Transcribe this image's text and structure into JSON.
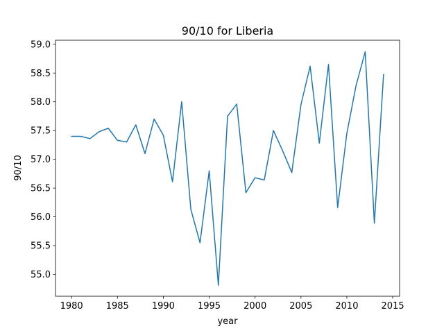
{
  "chart_data": {
    "type": "line",
    "title": "90/10 for Liberia",
    "xlabel": "year",
    "ylabel": "90/10",
    "xlim": [
      1978.25,
      2015.75
    ],
    "ylim": [
      54.62,
      59.07
    ],
    "x_ticks": [
      1980,
      1985,
      1990,
      1995,
      2000,
      2005,
      2010,
      2015
    ],
    "y_ticks": [
      55.0,
      55.5,
      56.0,
      56.5,
      57.0,
      57.5,
      58.0,
      58.5,
      59.0
    ],
    "grid": false,
    "series": [
      {
        "color": "#1f77b4",
        "x": [
          1980,
          1981,
          1982,
          1983,
          1984,
          1985,
          1986,
          1987,
          1988,
          1989,
          1990,
          1991,
          1992,
          1993,
          1994,
          1995,
          1996,
          1997,
          1998,
          1999,
          2000,
          2001,
          2002,
          2003,
          2004,
          2005,
          2006,
          2007,
          2008,
          2009,
          2010,
          2011,
          2012,
          2013,
          2014
        ],
        "y": [
          57.4,
          57.4,
          57.36,
          57.48,
          57.54,
          57.33,
          57.3,
          57.6,
          57.1,
          57.7,
          57.42,
          56.61,
          58.0,
          56.13,
          55.55,
          56.8,
          54.81,
          57.75,
          57.96,
          56.42,
          56.68,
          56.64,
          57.5,
          57.15,
          56.77,
          57.95,
          58.62,
          57.28,
          58.65,
          56.16,
          57.45,
          58.28,
          58.87,
          55.89,
          58.47
        ]
      }
    ]
  }
}
